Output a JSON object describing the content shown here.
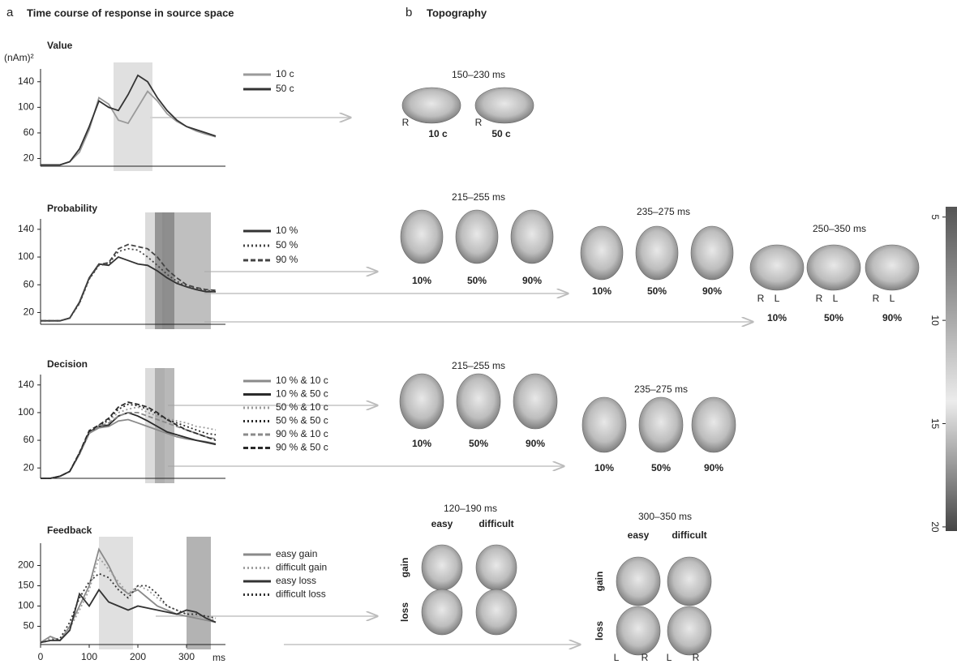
{
  "panel_a": {
    "letter": "a",
    "title": "Time course of response in source space"
  },
  "panel_b": {
    "letter": "b",
    "title": "Topography"
  },
  "chart_data": [
    {
      "type": "line",
      "title": "Value",
      "ylabel": "(nAm)²",
      "xlim": [
        0,
        380
      ],
      "ylim": [
        8,
        160
      ],
      "yticks": [
        20,
        60,
        100,
        140
      ],
      "bands": [
        {
          "x": [
            150,
            230
          ],
          "color": "#d6d6d6"
        }
      ],
      "x": [
        0,
        20,
        40,
        60,
        80,
        100,
        120,
        140,
        160,
        180,
        200,
        220,
        240,
        260,
        280,
        300,
        320,
        340,
        360
      ],
      "series": [
        {
          "name": "10 c",
          "color": "#9a9a9a",
          "dash": "solid",
          "values": [
            10,
            10,
            10,
            15,
            30,
            65,
            115,
            105,
            80,
            75,
            100,
            125,
            110,
            90,
            78,
            70,
            63,
            58,
            54
          ]
        },
        {
          "name": "50 c",
          "color": "#333333",
          "dash": "solid",
          "values": [
            10,
            10,
            10,
            15,
            35,
            70,
            110,
            100,
            95,
            120,
            150,
            140,
            115,
            95,
            80,
            70,
            65,
            60,
            55
          ]
        }
      ]
    },
    {
      "type": "line",
      "title": "Probability",
      "xlim": [
        0,
        380
      ],
      "ylim": [
        3,
        155
      ],
      "yticks": [
        20,
        60,
        100,
        140
      ],
      "bands": [
        {
          "x": [
            215,
            255
          ],
          "color": "#cfcfcf"
        },
        {
          "x": [
            250,
            350
          ],
          "color": "#a9a9a9"
        },
        {
          "x": [
            235,
            275
          ],
          "color": "#7d7d7d"
        }
      ],
      "x": [
        0,
        20,
        40,
        60,
        80,
        100,
        120,
        140,
        160,
        180,
        200,
        220,
        240,
        260,
        280,
        300,
        320,
        340,
        360
      ],
      "series": [
        {
          "name": "10 %",
          "color": "#333333",
          "dash": "solid",
          "values": [
            8,
            8,
            8,
            12,
            35,
            70,
            90,
            88,
            100,
            95,
            90,
            88,
            80,
            70,
            62,
            57,
            53,
            50,
            50
          ]
        },
        {
          "name": "50 %",
          "color": "#444444",
          "dash": "dotted",
          "values": [
            8,
            8,
            8,
            12,
            33,
            68,
            88,
            90,
            108,
            112,
            110,
            100,
            88,
            75,
            65,
            58,
            54,
            52,
            50
          ]
        },
        {
          "name": "90 %",
          "color": "#444444",
          "dash": "dashed",
          "values": [
            8,
            8,
            8,
            12,
            34,
            69,
            89,
            92,
            112,
            118,
            115,
            112,
            100,
            82,
            70,
            60,
            56,
            53,
            52
          ]
        }
      ]
    },
    {
      "type": "line",
      "title": "Decision",
      "xlim": [
        0,
        380
      ],
      "ylim": [
        5,
        155
      ],
      "yticks": [
        20,
        60,
        100,
        140
      ],
      "bands": [
        {
          "x": [
            215,
            255
          ],
          "color": "#cfcfcf"
        },
        {
          "x": [
            235,
            275
          ],
          "color": "#a0a0a0"
        }
      ],
      "x": [
        0,
        20,
        40,
        60,
        80,
        100,
        120,
        140,
        160,
        180,
        200,
        220,
        240,
        260,
        280,
        300,
        320,
        340,
        360
      ],
      "series": [
        {
          "name": "10 % & 10 c",
          "color": "#8a8a8a",
          "dash": "solid",
          "values": [
            5,
            5,
            8,
            15,
            40,
            70,
            78,
            80,
            88,
            90,
            85,
            80,
            75,
            70,
            65,
            62,
            60,
            58,
            55
          ]
        },
        {
          "name": "10 % & 50 c",
          "color": "#2a2a2a",
          "dash": "solid",
          "values": [
            5,
            5,
            8,
            15,
            40,
            72,
            80,
            82,
            95,
            100,
            95,
            88,
            80,
            72,
            68,
            64,
            60,
            57,
            54
          ]
        },
        {
          "name": "50 % & 10 c",
          "color": "#9a9a9a",
          "dash": "dotted",
          "values": [
            5,
            5,
            8,
            15,
            40,
            70,
            82,
            88,
            100,
            105,
            108,
            100,
            95,
            92,
            88,
            85,
            80,
            78,
            75
          ]
        },
        {
          "name": "50 % & 50 c",
          "color": "#2a2a2a",
          "dash": "dotted",
          "values": [
            5,
            5,
            8,
            15,
            42,
            72,
            80,
            90,
            105,
            112,
            110,
            105,
            98,
            90,
            85,
            80,
            75,
            70,
            68
          ]
        },
        {
          "name": "90 % & 10 c",
          "color": "#8a8a8a",
          "dash": "dashed",
          "values": [
            5,
            5,
            8,
            15,
            40,
            70,
            80,
            85,
            95,
            100,
            100,
            95,
            90,
            85,
            80,
            75,
            70,
            65,
            62
          ]
        },
        {
          "name": "90 % & 50 c",
          "color": "#2a2a2a",
          "dash": "dashed",
          "values": [
            5,
            5,
            8,
            15,
            42,
            74,
            82,
            92,
            108,
            115,
            112,
            108,
            100,
            90,
            82,
            75,
            70,
            65,
            60
          ]
        }
      ]
    },
    {
      "type": "line",
      "title": "Feedback",
      "xlabel": "ms",
      "xlim": [
        0,
        380
      ],
      "ylim": [
        5,
        255
      ],
      "yticks": [
        50,
        100,
        150,
        200
      ],
      "xticks": [
        0,
        100,
        200,
        300
      ],
      "bands": [
        {
          "x": [
            120,
            190
          ],
          "color": "#d6d6d6"
        },
        {
          "x": [
            300,
            350
          ],
          "color": "#9a9a9a"
        }
      ],
      "x": [
        0,
        20,
        40,
        60,
        80,
        100,
        120,
        140,
        160,
        180,
        200,
        220,
        240,
        260,
        280,
        300,
        320,
        340,
        360
      ],
      "series": [
        {
          "name": "easy gain",
          "color": "#8a8a8a",
          "dash": "solid",
          "values": [
            10,
            25,
            15,
            50,
            100,
            150,
            240,
            200,
            150,
            130,
            140,
            120,
            100,
            90,
            80,
            75,
            70,
            65,
            60
          ]
        },
        {
          "name": "difficult gain",
          "color": "#a0a0a0",
          "dash": "dotted",
          "values": [
            10,
            20,
            15,
            45,
            90,
            140,
            220,
            190,
            160,
            130,
            150,
            140,
            120,
            100,
            90,
            80,
            75,
            70,
            65
          ]
        },
        {
          "name": "easy loss",
          "color": "#333333",
          "dash": "solid",
          "values": [
            10,
            15,
            15,
            40,
            130,
            100,
            140,
            110,
            100,
            90,
            100,
            95,
            90,
            85,
            80,
            90,
            85,
            70,
            60
          ]
        },
        {
          "name": "difficult loss",
          "color": "#333333",
          "dash": "dotted",
          "values": [
            10,
            15,
            20,
            60,
            120,
            160,
            180,
            170,
            140,
            120,
            150,
            150,
            130,
            100,
            90,
            80,
            80,
            75,
            70
          ]
        }
      ]
    }
  ],
  "topography": [
    {
      "window": "150–230 ms",
      "labels": [
        "10 c",
        "50 c"
      ],
      "sides": [
        "R",
        "R"
      ]
    },
    {
      "window": "215–255 ms",
      "labels": [
        "10%",
        "50%",
        "90%"
      ]
    },
    {
      "window": "235–275 ms",
      "labels": [
        "10%",
        "50%",
        "90%"
      ]
    },
    {
      "window": "250–350 ms",
      "labels": [
        "10%",
        "50%",
        "90%"
      ],
      "sides": [
        "R",
        "L",
        "R",
        "L",
        "R",
        "L"
      ]
    },
    {
      "window": "215–255 ms",
      "labels": [
        "10%",
        "50%",
        "90%"
      ]
    },
    {
      "window": "235–275 ms",
      "labels": [
        "10%",
        "50%",
        "90%"
      ]
    },
    {
      "window": "120–190 ms",
      "columns": [
        "easy",
        "difficult"
      ],
      "rows": [
        "gain",
        "loss"
      ]
    },
    {
      "window": "300–350 ms",
      "columns": [
        "easy",
        "difficult"
      ],
      "rows": [
        "gain",
        "loss"
      ],
      "sides": [
        "L",
        "R",
        "L",
        "R"
      ]
    }
  ],
  "colorbar": {
    "lim": [
      4.5,
      20.2
    ],
    "ticks": [
      5,
      10,
      15,
      20
    ]
  }
}
